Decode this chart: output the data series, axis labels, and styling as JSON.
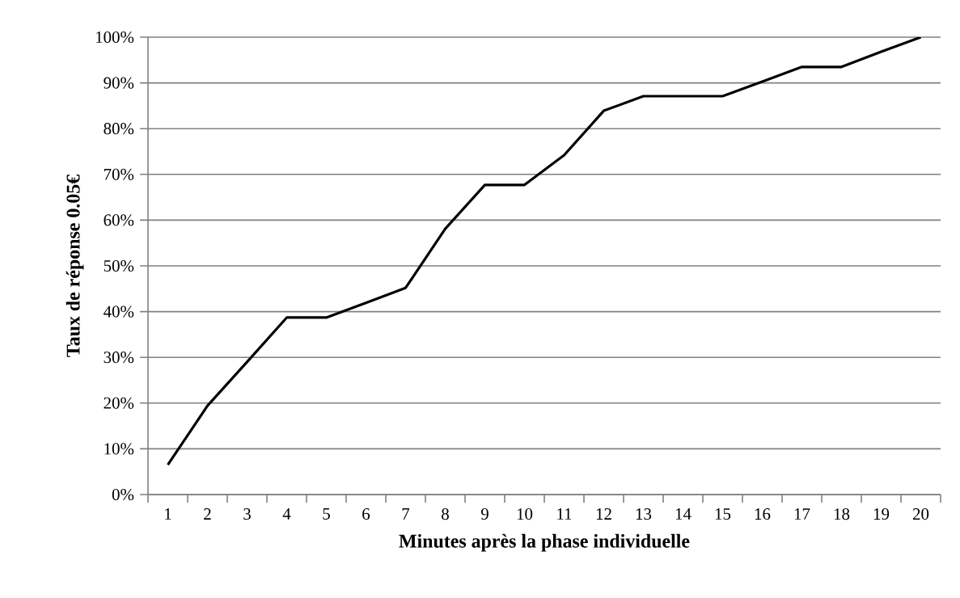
{
  "chart_data": {
    "type": "line",
    "xlabel": "Minutes après la phase individuelle",
    "ylabel": "Taux de réponse 0.05€",
    "categories": [
      "1",
      "2",
      "3",
      "4",
      "5",
      "6",
      "7",
      "8",
      "9",
      "10",
      "11",
      "12",
      "13",
      "14",
      "15",
      "16",
      "17",
      "18",
      "19",
      "20"
    ],
    "series": [
      {
        "color": "#000000",
        "values": [
          6.5,
          19.4,
          29.0,
          38.7,
          38.7,
          41.9,
          45.2,
          58.1,
          67.7,
          67.7,
          74.2,
          83.9,
          87.1,
          87.1,
          87.1,
          90.3,
          93.5,
          93.5,
          96.8,
          100
        ]
      }
    ],
    "ylim": [
      0,
      100
    ],
    "yticks": [
      {
        "value": 0,
        "label": "0%"
      },
      {
        "value": 10,
        "label": "10%"
      },
      {
        "value": 20,
        "label": "20%"
      },
      {
        "value": 30,
        "label": "30%"
      },
      {
        "value": 40,
        "label": "40%"
      },
      {
        "value": 50,
        "label": "50%"
      },
      {
        "value": 60,
        "label": "60%"
      },
      {
        "value": 70,
        "label": "70%"
      },
      {
        "value": 80,
        "label": "80%"
      },
      {
        "value": 90,
        "label": "90%"
      },
      {
        "value": 100,
        "label": "100%"
      }
    ],
    "grid": "y",
    "marker": "none",
    "line_style": "solid"
  }
}
